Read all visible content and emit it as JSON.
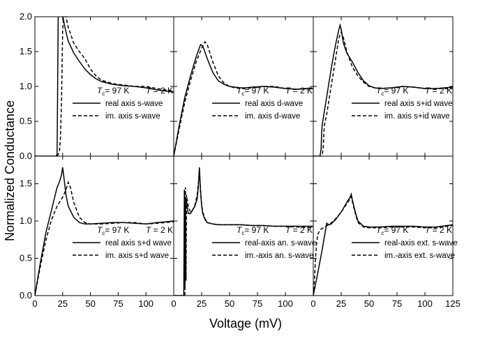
{
  "figure": {
    "ylabel": "Normalized Conductance",
    "xlabel": "Voltage (mV)"
  },
  "chart_data": [
    {
      "type": "line",
      "panel": "top-left",
      "xlim": [
        0,
        125
      ],
      "ylim": [
        0,
        2.0
      ],
      "yticks": [
        "0.0",
        "0.5",
        "1.0",
        "1.5",
        "2.0"
      ],
      "xticks": [],
      "annotation": {
        "tc": "97 K",
        "t": "2 K"
      },
      "series": [
        {
          "name": "real axis s-wave",
          "style": "solid",
          "x": [
            0,
            19,
            20,
            20.3,
            21,
            22,
            24,
            27,
            30,
            35,
            40,
            45,
            50,
            55,
            60,
            70,
            80,
            90,
            100,
            110,
            125
          ],
          "y": [
            0,
            0,
            0.02,
            0.6,
            2.0,
            2.3,
            2.1,
            1.85,
            1.65,
            1.48,
            1.36,
            1.25,
            1.17,
            1.11,
            1.07,
            1.03,
            1.01,
            1.0,
            0.98,
            0.95,
            0.92
          ]
        },
        {
          "name": "im. axis s-wave",
          "style": "dashed",
          "x": [
            0,
            20,
            22,
            23,
            24,
            25,
            26,
            28,
            30,
            35,
            40,
            45,
            50,
            55,
            60,
            70,
            80,
            90,
            100,
            110,
            125
          ],
          "y": [
            0,
            0,
            0.05,
            0.25,
            0.8,
            1.8,
            2.05,
            2.0,
            1.85,
            1.62,
            1.5,
            1.4,
            1.25,
            1.15,
            1.09,
            1.04,
            1.02,
            1.0,
            1.0,
            0.97,
            0.93
          ]
        }
      ]
    },
    {
      "type": "line",
      "panel": "top-middle",
      "xlim": [
        0,
        125
      ],
      "ylim": [
        0,
        2.0
      ],
      "yticks": [],
      "xticks": [],
      "annotation": {
        "tc": "97 K",
        "t": "2 K"
      },
      "series": [
        {
          "name": "real axis d-wave",
          "style": "solid",
          "x": [
            0,
            5,
            10,
            15,
            20,
            24,
            26,
            30,
            35,
            40,
            45,
            50,
            55,
            60,
            65,
            70,
            80,
            90,
            100,
            110,
            125
          ],
          "y": [
            0,
            0.45,
            0.85,
            1.15,
            1.42,
            1.6,
            1.58,
            1.4,
            1.2,
            1.08,
            1.03,
            1.0,
            0.99,
            0.98,
            0.98,
            0.99,
            1.0,
            0.99,
            0.97,
            0.96,
            0.97
          ]
        },
        {
          "name": "im. axis d-wave",
          "style": "dashed",
          "x": [
            0,
            5,
            10,
            15,
            20,
            25,
            28,
            30,
            35,
            40,
            45,
            50,
            55,
            60,
            65,
            70,
            80,
            90,
            100,
            110,
            125
          ],
          "y": [
            0,
            0.4,
            0.78,
            1.08,
            1.35,
            1.55,
            1.64,
            1.6,
            1.35,
            1.15,
            1.05,
            1.0,
            0.98,
            0.97,
            0.97,
            0.98,
            1.0,
            1.0,
            0.97,
            0.96,
            0.98
          ]
        }
      ]
    },
    {
      "type": "line",
      "panel": "top-right",
      "xlim": [
        0,
        125
      ],
      "ylim": [
        0,
        2.0
      ],
      "yticks": [],
      "xticks": [],
      "annotation": {
        "tc": "97 K",
        "t": "2 K"
      },
      "series": [
        {
          "name": "real axis s+id wave",
          "style": "solid",
          "x": [
            0,
            6,
            7,
            7.5,
            8,
            10,
            13,
            16,
            19,
            21,
            23,
            24,
            25,
            27,
            30,
            35,
            40,
            45,
            50,
            55,
            60,
            70,
            80,
            90,
            100,
            110,
            125
          ],
          "y": [
            0,
            0,
            0.1,
            0.35,
            0.45,
            0.65,
            0.95,
            1.25,
            1.52,
            1.68,
            1.82,
            1.88,
            1.82,
            1.62,
            1.48,
            1.35,
            1.2,
            1.08,
            1.01,
            0.98,
            0.97,
            0.98,
            1.0,
            0.99,
            0.97,
            0.97,
            0.99
          ]
        },
        {
          "name": "im. axis s+id wave",
          "style": "dashed",
          "x": [
            0,
            8,
            9,
            9.5,
            10,
            12,
            15,
            18,
            21,
            23,
            25,
            27,
            30,
            35,
            40,
            45,
            50,
            55,
            60,
            70,
            80,
            90,
            100,
            110,
            125
          ],
          "y": [
            0,
            0,
            0.15,
            0.35,
            0.45,
            0.6,
            0.9,
            1.2,
            1.5,
            1.7,
            1.78,
            1.7,
            1.5,
            1.28,
            1.15,
            1.06,
            1.0,
            0.98,
            0.97,
            0.98,
            1.0,
            0.99,
            0.97,
            0.97,
            0.97
          ]
        }
      ]
    },
    {
      "type": "line",
      "panel": "bottom-left",
      "xlim": [
        0,
        125
      ],
      "ylim": [
        0,
        1.87
      ],
      "yticks": [
        "0.0",
        "0.5",
        "1.0",
        "1.5"
      ],
      "xticks": [
        "0",
        "25",
        "50",
        "75",
        "100"
      ],
      "annotation": {
        "tc": "97 K",
        "t": "2 K"
      },
      "series": [
        {
          "name": "real axis s+d wave",
          "style": "solid",
          "x": [
            0,
            5,
            10,
            15,
            20,
            22,
            24,
            25,
            26,
            28,
            30,
            35,
            40,
            45,
            50,
            60,
            70,
            80,
            90,
            100,
            110,
            125
          ],
          "y": [
            0,
            0.45,
            0.85,
            1.15,
            1.45,
            1.52,
            1.62,
            1.72,
            1.6,
            1.35,
            1.2,
            1.05,
            0.98,
            0.96,
            0.96,
            0.97,
            0.98,
            0.98,
            0.97,
            0.96,
            0.98,
            1.0
          ]
        },
        {
          "name": "im. axis s+d wave",
          "style": "dashed",
          "x": [
            0,
            5,
            10,
            15,
            20,
            25,
            28,
            30,
            32,
            35,
            40,
            45,
            50,
            60,
            70,
            80,
            90,
            100,
            110,
            125
          ],
          "y": [
            0,
            0.4,
            0.75,
            1.02,
            1.2,
            1.32,
            1.42,
            1.52,
            1.45,
            1.25,
            1.05,
            0.98,
            0.96,
            0.96,
            0.97,
            0.98,
            0.98,
            0.96,
            0.97,
            0.99
          ]
        }
      ]
    },
    {
      "type": "line",
      "panel": "bottom-middle",
      "xlim": [
        0,
        125
      ],
      "ylim": [
        0,
        1.87
      ],
      "yticks": [],
      "xticks": [
        "0",
        "25",
        "50",
        "75",
        "100"
      ],
      "annotation": {
        "tc": "97 K",
        "t": "2 K"
      },
      "series": [
        {
          "name": "real-axis an. s-wave",
          "style": "solid",
          "x": [
            0,
            9,
            9.5,
            10,
            10.5,
            11,
            12,
            13,
            15,
            17,
            19,
            21,
            22,
            23,
            24,
            25,
            26,
            28,
            30,
            35,
            40,
            45,
            50,
            60,
            70,
            80,
            90,
            100,
            110,
            125
          ],
          "y": [
            0,
            0,
            1.42,
            0.1,
            1.25,
            1.3,
            1.2,
            1.1,
            1.1,
            1.15,
            1.2,
            1.3,
            1.45,
            1.72,
            1.4,
            1.2,
            1.1,
            1.02,
            0.98,
            0.96,
            0.95,
            0.95,
            0.95,
            0.95,
            0.94,
            0.94,
            0.93,
            0.93,
            0.93,
            0.93
          ]
        },
        {
          "name": "im.-axis an. s-wave",
          "style": "dashed",
          "x": [
            0,
            10,
            10.5,
            11,
            11.5,
            12,
            13,
            15,
            17,
            19,
            21,
            22,
            23,
            24,
            25,
            26,
            28,
            30,
            35,
            40,
            50,
            60,
            70,
            80,
            90,
            100,
            110,
            125
          ],
          "y": [
            0,
            0,
            1.45,
            0.2,
            1.35,
            1.3,
            1.2,
            1.12,
            1.15,
            1.22,
            1.35,
            1.5,
            1.68,
            1.42,
            1.22,
            1.12,
            1.03,
            0.98,
            0.96,
            0.95,
            0.95,
            0.95,
            0.94,
            0.94,
            0.93,
            0.93,
            0.92,
            0.91
          ]
        }
      ]
    },
    {
      "type": "line",
      "panel": "bottom-right",
      "xlim": [
        0,
        125
      ],
      "ylim": [
        0,
        1.87
      ],
      "yticks": [],
      "xticks": [
        "0",
        "25",
        "50",
        "75",
        "100",
        "125"
      ],
      "annotation": {
        "tc": "97 K",
        "t": "2 K"
      },
      "series": [
        {
          "name": "real-axis ext. s-wave",
          "style": "solid",
          "x": [
            0,
            4,
            8,
            11,
            12,
            14,
            16,
            20,
            25,
            30,
            33,
            34,
            35,
            38,
            40,
            45,
            50,
            60,
            70,
            80,
            90,
            100,
            110,
            125
          ],
          "y": [
            0,
            0.3,
            0.62,
            0.88,
            0.97,
            0.95,
            0.96,
            1.02,
            1.12,
            1.25,
            1.32,
            1.36,
            1.28,
            1.1,
            1.0,
            0.93,
            0.92,
            0.92,
            0.93,
            0.93,
            0.93,
            0.92,
            0.92,
            0.95
          ]
        },
        {
          "name": "im.-axis ext. s-wave",
          "style": "dashed",
          "x": [
            0,
            1,
            2,
            3,
            4,
            5,
            6,
            8,
            10,
            15,
            20,
            25,
            30,
            33,
            34,
            35,
            38,
            40,
            45,
            50,
            60,
            70,
            80,
            90,
            100,
            110,
            125
          ],
          "y": [
            0,
            0.2,
            0.5,
            0.7,
            0.82,
            0.85,
            0.88,
            0.9,
            0.92,
            0.96,
            1.03,
            1.12,
            1.23,
            1.3,
            1.33,
            1.26,
            1.08,
            0.98,
            0.92,
            0.91,
            0.91,
            0.92,
            0.92,
            0.92,
            0.91,
            0.91,
            0.94
          ]
        }
      ]
    }
  ]
}
